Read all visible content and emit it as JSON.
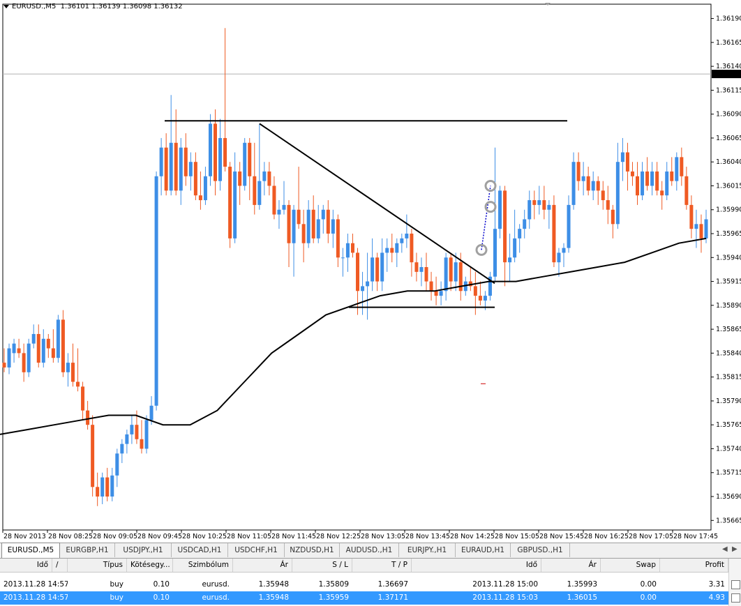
{
  "chart": {
    "header_symbol": "EURUSD.,M5",
    "header_prices": "1.36101 1.36139 1.36098 1.36132",
    "current_price_label": "1.36132",
    "y_labels": [
      "1.36190",
      "1.36165",
      "1.36140",
      "1.36115",
      "1.36090",
      "1.36065",
      "1.36040",
      "1.36015",
      "1.35990",
      "1.35965",
      "1.35940",
      "1.35915",
      "1.35890",
      "1.35865",
      "1.35840",
      "1.35815",
      "1.35790",
      "1.35765",
      "1.35740",
      "1.35715",
      "1.35690",
      "1.35665"
    ],
    "x_labels": [
      "28 Nov 2013",
      "28 Nov 08:25",
      "28 Nov 09:05",
      "28 Nov 09:45",
      "28 Nov 10:25",
      "28 Nov 11:05",
      "28 Nov 11:45",
      "28 Nov 12:25",
      "28 Nov 13:05",
      "28 Nov 13:45",
      "28 Nov 14:25",
      "28 Nov 15:05",
      "28 Nov 15:45",
      "28 Nov 16:25",
      "28 Nov 17:05",
      "28 Nov 17:45"
    ],
    "colors": {
      "bull": "#3d8ee6",
      "bear": "#ef5a23",
      "ma": "#000000",
      "trendline": "#000000",
      "trade_marker": "#a0a0a0",
      "trade_link": "#0000cc"
    }
  },
  "chart_data": {
    "type": "candlestick",
    "symbol": "EURUSD.",
    "timeframe": "M5",
    "ylim": [
      1.35655,
      1.36205
    ],
    "price_line": 1.36132,
    "candles": [
      {
        "o": 1.3583,
        "h": 1.35845,
        "l": 1.3582,
        "c": 1.35825
      },
      {
        "o": 1.35825,
        "h": 1.3585,
        "l": 1.35818,
        "c": 1.35845
      },
      {
        "o": 1.3584,
        "h": 1.35855,
        "l": 1.3583,
        "c": 1.3585
      },
      {
        "o": 1.35845,
        "h": 1.35855,
        "l": 1.35835,
        "c": 1.3584
      },
      {
        "o": 1.3584,
        "h": 1.3585,
        "l": 1.3581,
        "c": 1.3582
      },
      {
        "o": 1.3582,
        "h": 1.35855,
        "l": 1.35815,
        "c": 1.3585
      },
      {
        "o": 1.3585,
        "h": 1.3587,
        "l": 1.35845,
        "c": 1.3586
      },
      {
        "o": 1.3586,
        "h": 1.3587,
        "l": 1.35825,
        "c": 1.3583
      },
      {
        "o": 1.3583,
        "h": 1.35865,
        "l": 1.35825,
        "c": 1.35855
      },
      {
        "o": 1.35855,
        "h": 1.3586,
        "l": 1.35835,
        "c": 1.35845
      },
      {
        "o": 1.35845,
        "h": 1.35865,
        "l": 1.3583,
        "c": 1.35835
      },
      {
        "o": 1.35835,
        "h": 1.3588,
        "l": 1.3583,
        "c": 1.35875
      },
      {
        "o": 1.35875,
        "h": 1.35885,
        "l": 1.35815,
        "c": 1.3582
      },
      {
        "o": 1.3582,
        "h": 1.3584,
        "l": 1.35805,
        "c": 1.3583
      },
      {
        "o": 1.3583,
        "h": 1.3585,
        "l": 1.35805,
        "c": 1.3581
      },
      {
        "o": 1.3581,
        "h": 1.35845,
        "l": 1.358,
        "c": 1.35805
      },
      {
        "o": 1.35805,
        "h": 1.3581,
        "l": 1.3577,
        "c": 1.3578
      },
      {
        "o": 1.3578,
        "h": 1.3579,
        "l": 1.3576,
        "c": 1.35765
      },
      {
        "o": 1.35765,
        "h": 1.35775,
        "l": 1.3569,
        "c": 1.357
      },
      {
        "o": 1.357,
        "h": 1.35715,
        "l": 1.3568,
        "c": 1.3569
      },
      {
        "o": 1.3569,
        "h": 1.35715,
        "l": 1.35682,
        "c": 1.3571
      },
      {
        "o": 1.3571,
        "h": 1.3572,
        "l": 1.35685,
        "c": 1.3569
      },
      {
        "o": 1.3569,
        "h": 1.3572,
        "l": 1.35685,
        "c": 1.35712
      },
      {
        "o": 1.35712,
        "h": 1.3574,
        "l": 1.357,
        "c": 1.35735
      },
      {
        "o": 1.35735,
        "h": 1.3575,
        "l": 1.35725,
        "c": 1.35745
      },
      {
        "o": 1.35745,
        "h": 1.3576,
        "l": 1.35735,
        "c": 1.35755
      },
      {
        "o": 1.35755,
        "h": 1.35775,
        "l": 1.35745,
        "c": 1.35765
      },
      {
        "o": 1.35765,
        "h": 1.3578,
        "l": 1.35745,
        "c": 1.3575
      },
      {
        "o": 1.3575,
        "h": 1.3577,
        "l": 1.35735,
        "c": 1.3574
      },
      {
        "o": 1.3574,
        "h": 1.35775,
        "l": 1.35735,
        "c": 1.3577
      },
      {
        "o": 1.3577,
        "h": 1.35795,
        "l": 1.35765,
        "c": 1.35785
      },
      {
        "o": 1.35785,
        "h": 1.3603,
        "l": 1.3578,
        "c": 1.36025
      },
      {
        "o": 1.36025,
        "h": 1.36065,
        "l": 1.36005,
        "c": 1.36055
      },
      {
        "o": 1.36055,
        "h": 1.3607,
        "l": 1.36005,
        "c": 1.3601
      },
      {
        "o": 1.3601,
        "h": 1.3611,
        "l": 1.36005,
        "c": 1.3606
      },
      {
        "o": 1.3606,
        "h": 1.36095,
        "l": 1.36005,
        "c": 1.3601
      },
      {
        "o": 1.3601,
        "h": 1.36065,
        "l": 1.35995,
        "c": 1.36055
      },
      {
        "o": 1.36055,
        "h": 1.3607,
        "l": 1.36015,
        "c": 1.36025
      },
      {
        "o": 1.36025,
        "h": 1.3605,
        "l": 1.3601,
        "c": 1.3604
      },
      {
        "o": 1.3604,
        "h": 1.3605,
        "l": 1.36,
        "c": 1.36005
      },
      {
        "o": 1.36005,
        "h": 1.3603,
        "l": 1.3599,
        "c": 1.36
      },
      {
        "o": 1.36,
        "h": 1.36035,
        "l": 1.35995,
        "c": 1.36025
      },
      {
        "o": 1.36025,
        "h": 1.3609,
        "l": 1.36015,
        "c": 1.3608
      },
      {
        "o": 1.3608,
        "h": 1.36095,
        "l": 1.36005,
        "c": 1.3602
      },
      {
        "o": 1.3602,
        "h": 1.36085,
        "l": 1.3601,
        "c": 1.36065
      },
      {
        "o": 1.36065,
        "h": 1.3618,
        "l": 1.3603,
        "c": 1.36035
      },
      {
        "o": 1.36035,
        "h": 1.3604,
        "l": 1.3595,
        "c": 1.3596
      },
      {
        "o": 1.3596,
        "h": 1.3605,
        "l": 1.35955,
        "c": 1.3603
      },
      {
        "o": 1.3603,
        "h": 1.3604,
        "l": 1.35995,
        "c": 1.36015
      },
      {
        "o": 1.36015,
        "h": 1.36065,
        "l": 1.3601,
        "c": 1.3606
      },
      {
        "o": 1.3606,
        "h": 1.36065,
        "l": 1.36,
        "c": 1.36025
      },
      {
        "o": 1.36025,
        "h": 1.3606,
        "l": 1.35985,
        "c": 1.35995
      },
      {
        "o": 1.35995,
        "h": 1.3608,
        "l": 1.3599,
        "c": 1.3602
      },
      {
        "o": 1.3602,
        "h": 1.3604,
        "l": 1.36005,
        "c": 1.3603
      },
      {
        "o": 1.3603,
        "h": 1.3604,
        "l": 1.36005,
        "c": 1.36015
      },
      {
        "o": 1.36015,
        "h": 1.36025,
        "l": 1.3598,
        "c": 1.35985
      },
      {
        "o": 1.35985,
        "h": 1.36,
        "l": 1.3597,
        "c": 1.3599
      },
      {
        "o": 1.3599,
        "h": 1.3602,
        "l": 1.35985,
        "c": 1.35995
      },
      {
        "o": 1.35995,
        "h": 1.36,
        "l": 1.3593,
        "c": 1.35955
      },
      {
        "o": 1.35955,
        "h": 1.35995,
        "l": 1.3592,
        "c": 1.3599
      },
      {
        "o": 1.3599,
        "h": 1.36035,
        "l": 1.3597,
        "c": 1.35975
      },
      {
        "o": 1.35975,
        "h": 1.3599,
        "l": 1.35935,
        "c": 1.35955
      },
      {
        "o": 1.35955,
        "h": 1.36,
        "l": 1.3595,
        "c": 1.3599
      },
      {
        "o": 1.3599,
        "h": 1.36005,
        "l": 1.35955,
        "c": 1.3596
      },
      {
        "o": 1.3596,
        "h": 1.35995,
        "l": 1.35955,
        "c": 1.3598
      },
      {
        "o": 1.3598,
        "h": 1.35995,
        "l": 1.35965,
        "c": 1.3599
      },
      {
        "o": 1.3599,
        "h": 1.36,
        "l": 1.35955,
        "c": 1.35965
      },
      {
        "o": 1.35965,
        "h": 1.3599,
        "l": 1.3595,
        "c": 1.3598
      },
      {
        "o": 1.3598,
        "h": 1.35985,
        "l": 1.3593,
        "c": 1.3594
      },
      {
        "o": 1.3594,
        "h": 1.3595,
        "l": 1.3592,
        "c": 1.3594
      },
      {
        "o": 1.3594,
        "h": 1.35965,
        "l": 1.35925,
        "c": 1.35955
      },
      {
        "o": 1.35955,
        "h": 1.35965,
        "l": 1.3594,
        "c": 1.35945
      },
      {
        "o": 1.35945,
        "h": 1.3595,
        "l": 1.3588,
        "c": 1.35905
      },
      {
        "o": 1.35905,
        "h": 1.35925,
        "l": 1.3588,
        "c": 1.3591
      },
      {
        "o": 1.3591,
        "h": 1.35945,
        "l": 1.35875,
        "c": 1.35915
      },
      {
        "o": 1.35915,
        "h": 1.3596,
        "l": 1.35905,
        "c": 1.3594
      },
      {
        "o": 1.3594,
        "h": 1.35945,
        "l": 1.35905,
        "c": 1.35915
      },
      {
        "o": 1.35915,
        "h": 1.3596,
        "l": 1.35905,
        "c": 1.35945
      },
      {
        "o": 1.35945,
        "h": 1.3596,
        "l": 1.35925,
        "c": 1.3595
      },
      {
        "o": 1.3595,
        "h": 1.35965,
        "l": 1.35935,
        "c": 1.35945
      },
      {
        "o": 1.35945,
        "h": 1.3596,
        "l": 1.3593,
        "c": 1.35955
      },
      {
        "o": 1.35955,
        "h": 1.35965,
        "l": 1.35945,
        "c": 1.3596
      },
      {
        "o": 1.3596,
        "h": 1.35985,
        "l": 1.3595,
        "c": 1.35965
      },
      {
        "o": 1.35965,
        "h": 1.3597,
        "l": 1.3592,
        "c": 1.35935
      },
      {
        "o": 1.35935,
        "h": 1.35945,
        "l": 1.35915,
        "c": 1.35925
      },
      {
        "o": 1.35925,
        "h": 1.3594,
        "l": 1.3591,
        "c": 1.3593
      },
      {
        "o": 1.3593,
        "h": 1.35945,
        "l": 1.35905,
        "c": 1.35915
      },
      {
        "o": 1.35915,
        "h": 1.35925,
        "l": 1.35895,
        "c": 1.35905
      },
      {
        "o": 1.35905,
        "h": 1.3592,
        "l": 1.3589,
        "c": 1.359
      },
      {
        "o": 1.359,
        "h": 1.35915,
        "l": 1.3589,
        "c": 1.35905
      },
      {
        "o": 1.35905,
        "h": 1.35945,
        "l": 1.35895,
        "c": 1.3594
      },
      {
        "o": 1.3594,
        "h": 1.35945,
        "l": 1.35905,
        "c": 1.35915
      },
      {
        "o": 1.35915,
        "h": 1.35945,
        "l": 1.35905,
        "c": 1.35935
      },
      {
        "o": 1.35935,
        "h": 1.35945,
        "l": 1.35895,
        "c": 1.35905
      },
      {
        "o": 1.35905,
        "h": 1.3592,
        "l": 1.359,
        "c": 1.35915
      },
      {
        "o": 1.35915,
        "h": 1.3593,
        "l": 1.35905,
        "c": 1.3591
      },
      {
        "o": 1.3591,
        "h": 1.35925,
        "l": 1.3588,
        "c": 1.359
      },
      {
        "o": 1.359,
        "h": 1.35915,
        "l": 1.3589,
        "c": 1.35895
      },
      {
        "o": 1.35895,
        "h": 1.35905,
        "l": 1.35885,
        "c": 1.359
      },
      {
        "o": 1.359,
        "h": 1.35925,
        "l": 1.35895,
        "c": 1.3592
      },
      {
        "o": 1.3592,
        "h": 1.36055,
        "l": 1.35915,
        "c": 1.3597
      },
      {
        "o": 1.3597,
        "h": 1.36015,
        "l": 1.3596,
        "c": 1.3601
      },
      {
        "o": 1.3601,
        "h": 1.36015,
        "l": 1.3591,
        "c": 1.35935
      },
      {
        "o": 1.35935,
        "h": 1.35965,
        "l": 1.35915,
        "c": 1.3594
      },
      {
        "o": 1.3594,
        "h": 1.3599,
        "l": 1.35935,
        "c": 1.3596
      },
      {
        "o": 1.3596,
        "h": 1.35975,
        "l": 1.35945,
        "c": 1.3597
      },
      {
        "o": 1.3597,
        "h": 1.3599,
        "l": 1.3596,
        "c": 1.3598
      },
      {
        "o": 1.3598,
        "h": 1.3601,
        "l": 1.3597,
        "c": 1.36
      },
      {
        "o": 1.36,
        "h": 1.3601,
        "l": 1.3598,
        "c": 1.35995
      },
      {
        "o": 1.35995,
        "h": 1.36015,
        "l": 1.35985,
        "c": 1.36
      },
      {
        "o": 1.36,
        "h": 1.36015,
        "l": 1.3598,
        "c": 1.3599
      },
      {
        "o": 1.3599,
        "h": 1.36,
        "l": 1.3597,
        "c": 1.35995
      },
      {
        "o": 1.35995,
        "h": 1.36005,
        "l": 1.3593,
        "c": 1.35935
      },
      {
        "o": 1.35935,
        "h": 1.3595,
        "l": 1.3592,
        "c": 1.35945
      },
      {
        "o": 1.35945,
        "h": 1.35955,
        "l": 1.3593,
        "c": 1.3595
      },
      {
        "o": 1.3595,
        "h": 1.36005,
        "l": 1.35945,
        "c": 1.35995
      },
      {
        "o": 1.35995,
        "h": 1.3605,
        "l": 1.3599,
        "c": 1.3604
      },
      {
        "o": 1.3604,
        "h": 1.3605,
        "l": 1.3601,
        "c": 1.3602
      },
      {
        "o": 1.3602,
        "h": 1.3604,
        "l": 1.36005,
        "c": 1.36025
      },
      {
        "o": 1.36025,
        "h": 1.36035,
        "l": 1.36005,
        "c": 1.3601
      },
      {
        "o": 1.3601,
        "h": 1.3603,
        "l": 1.36,
        "c": 1.3602
      },
      {
        "o": 1.3602,
        "h": 1.36025,
        "l": 1.35995,
        "c": 1.3601
      },
      {
        "o": 1.3601,
        "h": 1.3602,
        "l": 1.3599,
        "c": 1.36
      },
      {
        "o": 1.36,
        "h": 1.36015,
        "l": 1.35975,
        "c": 1.3599
      },
      {
        "o": 1.3599,
        "h": 1.35995,
        "l": 1.3596,
        "c": 1.35975
      },
      {
        "o": 1.35975,
        "h": 1.3606,
        "l": 1.3597,
        "c": 1.3604
      },
      {
        "o": 1.3604,
        "h": 1.36065,
        "l": 1.3602,
        "c": 1.3605
      },
      {
        "o": 1.3605,
        "h": 1.3606,
        "l": 1.3601,
        "c": 1.3603
      },
      {
        "o": 1.3603,
        "h": 1.3604,
        "l": 1.36015,
        "c": 1.36025
      },
      {
        "o": 1.36025,
        "h": 1.3604,
        "l": 1.35995,
        "c": 1.36005
      },
      {
        "o": 1.36005,
        "h": 1.3604,
        "l": 1.36,
        "c": 1.3603
      },
      {
        "o": 1.3603,
        "h": 1.36045,
        "l": 1.3601,
        "c": 1.36015
      },
      {
        "o": 1.36015,
        "h": 1.3604,
        "l": 1.36005,
        "c": 1.3603
      },
      {
        "o": 1.3603,
        "h": 1.3604,
        "l": 1.36005,
        "c": 1.3601
      },
      {
        "o": 1.3601,
        "h": 1.3602,
        "l": 1.3599,
        "c": 1.36005
      },
      {
        "o": 1.36005,
        "h": 1.3604,
        "l": 1.36,
        "c": 1.3603
      },
      {
        "o": 1.3603,
        "h": 1.36045,
        "l": 1.36015,
        "c": 1.3602
      },
      {
        "o": 1.3602,
        "h": 1.3605,
        "l": 1.3601,
        "c": 1.36045
      },
      {
        "o": 1.36045,
        "h": 1.36055,
        "l": 1.36015,
        "c": 1.36025
      },
      {
        "o": 1.36025,
        "h": 1.36035,
        "l": 1.3599,
        "c": 1.35995
      },
      {
        "o": 1.35995,
        "h": 1.36005,
        "l": 1.3596,
        "c": 1.3597
      },
      {
        "o": 1.3597,
        "h": 1.3599,
        "l": 1.3595,
        "c": 1.35975
      },
      {
        "o": 1.35975,
        "h": 1.35985,
        "l": 1.35945,
        "c": 1.3596
      },
      {
        "o": 1.3596,
        "h": 1.3599,
        "l": 1.35955,
        "c": 1.3598
      }
    ],
    "moving_average": {
      "values": [
        1.35755,
        1.3576,
        1.35765,
        1.3577,
        1.35775,
        1.35775,
        1.35765,
        1.35765,
        1.3578,
        1.3581,
        1.3584,
        1.3586,
        1.3588,
        1.3589,
        1.359,
        1.35905,
        1.35905,
        1.3591,
        1.35915,
        1.35915,
        1.3592,
        1.35925,
        1.3593,
        1.35935,
        1.35945,
        1.35955,
        1.3596
      ]
    },
    "horizontal_lines": [
      1.36083,
      1.35888
    ],
    "trendline": {
      "from": 1.3608,
      "to": 1.35913
    },
    "trades": [
      {
        "open": 1.35948,
        "sl": 1.35809,
        "tp": 1.36697,
        "close": 1.35993
      },
      {
        "open": 1.35948,
        "sl": 1.35959,
        "tp": 1.37171,
        "close": 1.36015
      }
    ]
  },
  "tabs": [
    "EURUSD.,M5",
    "EURGBP,H1",
    "USDJPY.,H1",
    "USDCAD,H1",
    "USDCHF,H1",
    "NZDUSD,H1",
    "AUDUSD.,H1",
    "EURJPY.,H1",
    "EURAUD,H1",
    "GBPUSD.,H1"
  ],
  "tabs_selected": 0,
  "grid": {
    "columns": [
      "Idő",
      "/",
      "Típus",
      "Kötésegy...",
      "Szimbólum",
      "Ár",
      "S / L",
      "T / P",
      "Idő",
      "Ár",
      "Swap",
      "Profit"
    ],
    "rows": [
      {
        "open_time": "2013.11.28 14:57",
        "type": "buy",
        "volume": "0.10",
        "symbol": "eurusd.",
        "open_price": "1.35948",
        "sl": "1.35809",
        "tp": "1.36697",
        "close_time": "2013.11.28 15:00",
        "close_price": "1.35993",
        "swap": "0.00",
        "profit": "3.31"
      },
      {
        "open_time": "2013.11.28 14:57",
        "type": "buy",
        "volume": "0.10",
        "symbol": "eurusd.",
        "open_price": "1.35948",
        "sl": "1.35959",
        "tp": "1.37171",
        "close_time": "2013.11.28 15:03",
        "close_price": "1.36015",
        "swap": "0.00",
        "profit": "4.93"
      }
    ],
    "selected_row": 1
  }
}
